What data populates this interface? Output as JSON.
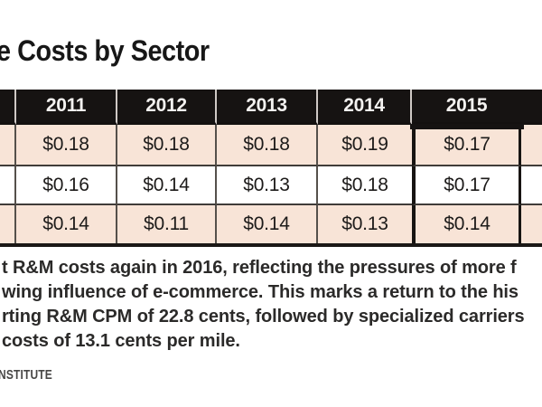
{
  "title": "e Costs by Sector",
  "table": {
    "years": [
      "2011",
      "2012",
      "2013",
      "2014",
      "2015"
    ],
    "rows": [
      {
        "values": [
          "$0.18",
          "$0.18",
          "$0.18",
          "$0.19",
          "$0.17"
        ]
      },
      {
        "values": [
          "$0.16",
          "$0.14",
          "$0.13",
          "$0.18",
          "$0.17"
        ]
      },
      {
        "values": [
          "$0.14",
          "$0.11",
          "$0.14",
          "$0.13",
          "$0.14"
        ]
      }
    ],
    "highlighted_year": "2015",
    "colors": {
      "header_bg": "#161312",
      "row_pink": "#f8e4d7",
      "row_white": "#ffffff",
      "highlight_border": "#171412"
    }
  },
  "body_text": {
    "line1": "t R&M costs again in 2016, reflecting the pressures of more f",
    "line2": "wing influence of e-commerce. This marks a return to the his",
    "line3": "rting R&M CPM of 22.8 cents, followed by specialized carriers",
    "line4": "costs of 13.1 cents per mile."
  },
  "attribution": "NSTITUTE",
  "chart_data": {
    "type": "table",
    "title": "e Costs by Sector",
    "columns": [
      "2011",
      "2012",
      "2013",
      "2014",
      "2015"
    ],
    "rows": [
      [
        "$0.18",
        "$0.18",
        "$0.18",
        "$0.19",
        "$0.17"
      ],
      [
        "$0.16",
        "$0.14",
        "$0.13",
        "$0.18",
        "$0.17"
      ],
      [
        "$0.14",
        "$0.11",
        "$0.14",
        "$0.13",
        "$0.14"
      ]
    ],
    "highlighted_column": "2015"
  }
}
